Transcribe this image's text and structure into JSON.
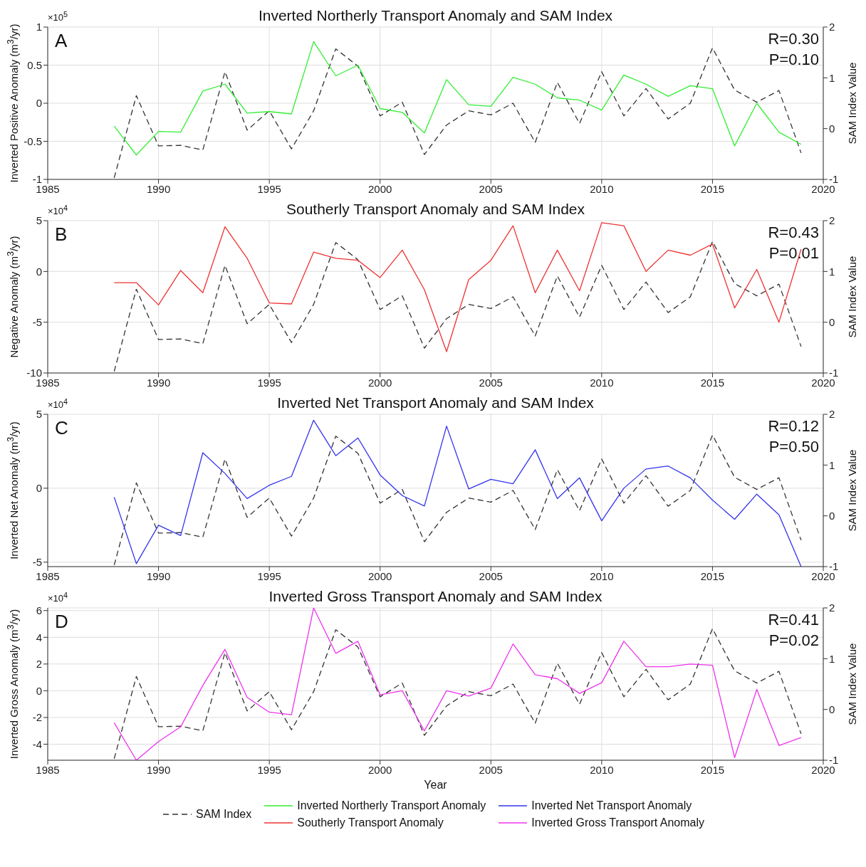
{
  "chart_data": [
    {
      "type": "line",
      "title": "Inverted Northerly Transport Anomaly and SAM Index",
      "ylabel": "Inverted Positive Anomaly (m$^{3}$/yr)",
      "y2label": "SAM Index Value",
      "annotations": [
        "A",
        "R=0.30",
        "P=0.10",
        "×10$^{5}$"
      ],
      "x": [
        1988,
        1989,
        1990,
        1991,
        1992,
        1993,
        1994,
        1995,
        1996,
        1997,
        1998,
        1999,
        2000,
        2001,
        2002,
        2003,
        2004,
        2005,
        2006,
        2007,
        2008,
        2009,
        2010,
        2011,
        2012,
        2013,
        2014,
        2015,
        2016,
        2017,
        2018,
        2019
      ],
      "series": [
        {
          "name": "SAM Index",
          "color": "#333333",
          "axis": "y2",
          "line_style": "dashed",
          "values": [
            -0.97,
            0.65,
            -0.34,
            -0.33,
            -0.42,
            1.12,
            -0.03,
            0.35,
            -0.4,
            0.35,
            1.57,
            1.23,
            0.25,
            0.52,
            -0.51,
            0.07,
            0.35,
            0.27,
            0.5,
            -0.27,
            0.91,
            0.1,
            1.12,
            0.25,
            0.79,
            0.19,
            0.5,
            1.59,
            0.76,
            0.52,
            0.75,
            -0.48
          ]
        },
        {
          "name": "Inverted Northerly Transport Anomaly",
          "color": "#33ee33",
          "values": [
            -0.3,
            -0.68,
            -0.37,
            -0.38,
            0.16,
            0.25,
            -0.13,
            -0.11,
            -0.14,
            0.81,
            0.36,
            0.5,
            -0.07,
            -0.12,
            -0.39,
            0.31,
            -0.02,
            -0.04,
            0.34,
            0.25,
            0.07,
            0.04,
            -0.09,
            0.37,
            0.25,
            0.09,
            0.23,
            0.19,
            -0.56,
            0,
            -0.38,
            -0.54
          ]
        }
      ],
      "xlim": [
        1985,
        2020
      ],
      "xticks": [
        1985,
        1990,
        1995,
        2000,
        2005,
        2010,
        2015,
        2020
      ],
      "ylim": [
        -1,
        1
      ],
      "yticks": [
        -1,
        -0.5,
        0,
        0.5,
        1
      ],
      "y2lim": [
        -1,
        2
      ],
      "y2ticks": [
        -1,
        0,
        1,
        2
      ],
      "grid": true,
      "legend": "bottom",
      "marker": "none",
      "line_style": "solid"
    },
    {
      "type": "line",
      "title": "Southerly Transport Anomaly and SAM Index",
      "ylabel": "Negative Anomaly (m$^{3}$/yr)",
      "y2label": "SAM Index Value",
      "annotations": [
        "B",
        "R=0.43",
        "P=0.01",
        "×10$^{4}$"
      ],
      "x": [
        1988,
        1989,
        1990,
        1991,
        1992,
        1993,
        1994,
        1995,
        1996,
        1997,
        1998,
        1999,
        2000,
        2001,
        2002,
        2003,
        2004,
        2005,
        2006,
        2007,
        2008,
        2009,
        2010,
        2011,
        2012,
        2013,
        2014,
        2015,
        2016,
        2017,
        2018,
        2019
      ],
      "series": [
        {
          "color": "#333333",
          "axis": "y2",
          "line_style": "dashed",
          "values": [
            -0.97,
            0.65,
            -0.34,
            -0.33,
            -0.42,
            1.12,
            -0.03,
            0.35,
            -0.4,
            0.35,
            1.57,
            1.23,
            0.25,
            0.52,
            -0.51,
            0.07,
            0.35,
            0.27,
            0.5,
            -0.27,
            0.91,
            0.1,
            1.12,
            0.25,
            0.79,
            0.19,
            0.5,
            1.59,
            0.76,
            0.52,
            0.75,
            -0.48
          ]
        },
        {
          "name": "Southerly Transport Anomaly",
          "color": "#ee3333",
          "values": [
            -1.1,
            -1.1,
            -3.3,
            0.1,
            -2.1,
            4.4,
            1.3,
            -3.1,
            -3.2,
            1.9,
            1.3,
            1.1,
            -0.6,
            2.1,
            -1.8,
            -7.9,
            -0.8,
            1.1,
            4.5,
            -2.1,
            2.1,
            -1.9,
            4.8,
            4.5,
            0,
            2.1,
            1.6,
            2.7,
            -3.6,
            0.2,
            -5,
            2.2
          ]
        }
      ],
      "xlim": [
        1985,
        2020
      ],
      "xticks": [
        1985,
        1990,
        1995,
        2000,
        2005,
        2010,
        2015,
        2020
      ],
      "ylim": [
        -10,
        5
      ],
      "yticks": [
        -10,
        -5,
        0,
        5
      ],
      "y2lim": [
        -1,
        2
      ],
      "y2ticks": [
        -1,
        0,
        1,
        2
      ],
      "grid": true,
      "legend": "bottom",
      "marker": "none",
      "line_style": "solid"
    },
    {
      "type": "line",
      "title": "Inverted Net Transport Anomaly and SAM Index",
      "ylabel": "Inverted Net Anomaly (m$^{3}$/yr)",
      "y2label": "SAM Index Value",
      "annotations": [
        "C",
        "R=0.12",
        "P=0.50",
        "×10$^{4}$"
      ],
      "x": [
        1988,
        1989,
        1990,
        1991,
        1992,
        1993,
        1994,
        1995,
        1996,
        1997,
        1998,
        1999,
        2000,
        2001,
        2002,
        2003,
        2004,
        2005,
        2006,
        2007,
        2008,
        2009,
        2010,
        2011,
        2012,
        2013,
        2014,
        2015,
        2016,
        2017,
        2018,
        2019
      ],
      "series": [
        {
          "color": "#333333",
          "axis": "y2",
          "line_style": "dashed",
          "values": [
            -0.97,
            0.65,
            -0.34,
            -0.33,
            -0.42,
            1.12,
            -0.03,
            0.35,
            -0.4,
            0.35,
            1.57,
            1.23,
            0.25,
            0.52,
            -0.51,
            0.07,
            0.35,
            0.27,
            0.5,
            -0.27,
            0.91,
            0.1,
            1.12,
            0.25,
            0.79,
            0.19,
            0.5,
            1.59,
            0.76,
            0.52,
            0.75,
            -0.48
          ]
        },
        {
          "name": "Inverted Net Transport Anomaly",
          "color": "#3333ee",
          "values": [
            -0.6,
            -5.1,
            -2.5,
            -3.2,
            2.4,
            1,
            -0.7,
            0.2,
            0.8,
            4.6,
            2.2,
            3.4,
            0.9,
            -0.5,
            -1.2,
            4.2,
            -0.05,
            0.6,
            0.3,
            2.6,
            -0.7,
            0.7,
            -2.2,
            0,
            1.3,
            1.5,
            0.7,
            -0.8,
            -2.1,
            -0.4,
            -1.8,
            -5.3
          ]
        }
      ],
      "xlim": [
        1985,
        2020
      ],
      "xticks": [
        1985,
        1990,
        1995,
        2000,
        2005,
        2010,
        2015,
        2020
      ],
      "ylim": [
        -5.3,
        5
      ],
      "yticks": [
        -5,
        0,
        5
      ],
      "y2lim": [
        -1,
        2
      ],
      "y2ticks": [
        -1,
        0,
        1,
        2
      ],
      "grid": true,
      "legend": "bottom",
      "marker": "none",
      "line_style": "solid"
    },
    {
      "type": "line",
      "title": "Inverted Gross Transport Anomaly and SAM Index",
      "xlabel": "Year",
      "ylabel": "Inverted Gross Anomaly (m$^{3}$/yr)",
      "y2label": "SAM Index Value",
      "annotations": [
        "D",
        "R=0.41",
        "P=0.02",
        "×10$^{4}$"
      ],
      "x": [
        1988,
        1989,
        1990,
        1991,
        1992,
        1993,
        1994,
        1995,
        1996,
        1997,
        1998,
        1999,
        2000,
        2001,
        2002,
        2003,
        2004,
        2005,
        2006,
        2007,
        2008,
        2009,
        2010,
        2011,
        2012,
        2013,
        2014,
        2015,
        2016,
        2017,
        2018,
        2019
      ],
      "series": [
        {
          "color": "#333333",
          "axis": "y2",
          "line_style": "dashed",
          "values": [
            -0.97,
            0.65,
            -0.34,
            -0.33,
            -0.42,
            1.12,
            -0.03,
            0.35,
            -0.4,
            0.35,
            1.57,
            1.23,
            0.25,
            0.52,
            -0.51,
            0.07,
            0.35,
            0.27,
            0.5,
            -0.27,
            0.91,
            0.1,
            1.12,
            0.25,
            0.79,
            0.19,
            0.5,
            1.59,
            0.76,
            0.52,
            0.75,
            -0.48
          ]
        },
        {
          "name": "Inverted Gross Transport Anomaly",
          "color": "#ee33ee",
          "values": [
            -2.4,
            -5.2,
            -3.8,
            -2.7,
            0.4,
            3.1,
            -0.5,
            -1.6,
            -1.8,
            6.2,
            2.8,
            3.7,
            -0.3,
            0,
            -3,
            0,
            -0.4,
            0.2,
            3.5,
            1.2,
            0.9,
            -0.2,
            0.6,
            3.7,
            1.8,
            1.8,
            2,
            1.9,
            -5,
            0.1,
            -4.1,
            -3.5
          ]
        }
      ],
      "xlim": [
        1985,
        2020
      ],
      "xticks": [
        1985,
        1990,
        1995,
        2000,
        2005,
        2010,
        2015,
        2020
      ],
      "ylim": [
        -5.2,
        6.2
      ],
      "yticks": [
        -4,
        -2,
        0,
        2,
        4,
        6
      ],
      "y2lim": [
        -1,
        2
      ],
      "y2ticks": [
        -1,
        0,
        1,
        2
      ],
      "grid": true,
      "legend": "bottom",
      "marker": "none",
      "line_style": "solid"
    }
  ]
}
